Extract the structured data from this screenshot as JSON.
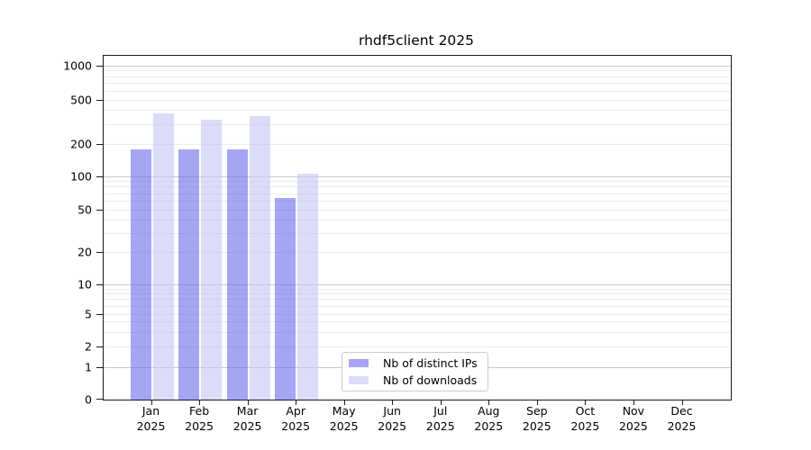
{
  "chart_data": {
    "type": "bar",
    "title": "rhdf5client 2025",
    "months": [
      "Jan",
      "Feb",
      "Mar",
      "Apr",
      "May",
      "Jun",
      "Jul",
      "Aug",
      "Sep",
      "Oct",
      "Nov",
      "Dec"
    ],
    "year": "2025",
    "yticks": [
      0,
      1,
      2,
      5,
      10,
      20,
      50,
      100,
      200,
      500,
      1000
    ],
    "yscale": "symlog",
    "ylim": [
      0,
      1250
    ],
    "grid": true,
    "legend_position": "lower center",
    "series": [
      {
        "name": "Nb of distinct IPs",
        "color": "rgba(110,110,237,0.62)",
        "values": [
          180,
          180,
          180,
          65,
          null,
          null,
          null,
          null,
          null,
          null,
          null,
          null
        ]
      },
      {
        "name": "Nb of downloads",
        "color": "rgba(198,198,245,0.62)",
        "values": [
          380,
          335,
          360,
          107,
          null,
          null,
          null,
          null,
          null,
          null,
          null,
          null
        ]
      }
    ],
    "colors": {
      "major_grid": "#c8c8c8",
      "minor_grid": "#ebebeb",
      "axis": "#1a1a1a"
    }
  }
}
